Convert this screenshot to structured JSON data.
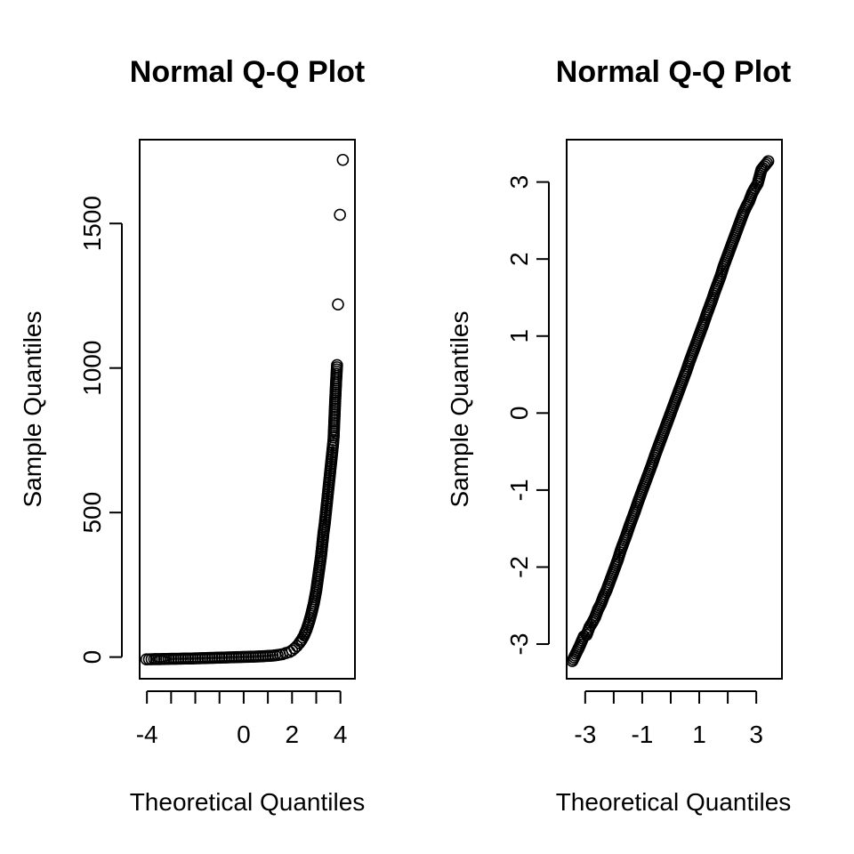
{
  "chart_data": [
    {
      "type": "scatter",
      "title": "Normal Q-Q Plot",
      "xlabel": "Theoretical Quantiles",
      "ylabel": "Sample Quantiles",
      "xlim": [
        -4.3,
        4.6
      ],
      "ylim": [
        -75,
        1790
      ],
      "xticks": [
        -4,
        -3,
        -2,
        -1,
        0,
        1,
        2,
        3,
        4
      ],
      "xtick_labels": [
        "-4",
        "",
        "",
        "",
        "0",
        "",
        "2",
        "",
        "4"
      ],
      "yticks": [
        0,
        500,
        1000,
        1500
      ],
      "ytick_labels": [
        "0",
        "500",
        "1000",
        "1500"
      ],
      "grid": false,
      "points": [
        [
          -4.02,
          -8
        ],
        [
          -3.7,
          -7
        ],
        [
          -3.45,
          -7
        ],
        [
          -3.2,
          -6.5
        ],
        [
          -3.0,
          -6
        ],
        [
          -2.8,
          -6
        ],
        [
          -2.6,
          -5.5
        ],
        [
          -2.4,
          -5
        ],
        [
          -2.2,
          -5
        ],
        [
          -2.0,
          -4.5
        ],
        [
          -1.8,
          -4
        ],
        [
          -1.6,
          -3.5
        ],
        [
          -1.4,
          -3
        ],
        [
          -1.2,
          -2.5
        ],
        [
          -1.0,
          -2
        ],
        [
          -0.8,
          -1.5
        ],
        [
          -0.6,
          -1
        ],
        [
          -0.4,
          -0.5
        ],
        [
          -0.2,
          0
        ],
        [
          0.0,
          0.5
        ],
        [
          0.2,
          1
        ],
        [
          0.4,
          1.5
        ],
        [
          0.6,
          2
        ],
        [
          0.8,
          3
        ],
        [
          1.0,
          4
        ],
        [
          1.2,
          5
        ],
        [
          1.4,
          7
        ],
        [
          1.6,
          10
        ],
        [
          1.75,
          14
        ],
        [
          1.9,
          18
        ],
        [
          2.0,
          23
        ],
        [
          2.1,
          30
        ],
        [
          2.2,
          38
        ],
        [
          2.3,
          48
        ],
        [
          2.4,
          60
        ],
        [
          2.5,
          75
        ],
        [
          2.6,
          95
        ],
        [
          2.7,
          120
        ],
        [
          2.8,
          150
        ],
        [
          2.9,
          185
        ],
        [
          3.0,
          230
        ],
        [
          3.05,
          260
        ],
        [
          3.1,
          290
        ],
        [
          3.15,
          320
        ],
        [
          3.2,
          350
        ],
        [
          3.25,
          390
        ],
        [
          3.3,
          430
        ],
        [
          3.35,
          460
        ],
        [
          3.4,
          500
        ],
        [
          3.45,
          540
        ],
        [
          3.5,
          580
        ],
        [
          3.55,
          620
        ],
        [
          3.6,
          660
        ],
        [
          3.65,
          700
        ],
        [
          3.7,
          740
        ],
        [
          3.72,
          760
        ],
        [
          3.78,
          880
        ],
        [
          3.82,
          950
        ],
        [
          3.86,
          1010
        ],
        [
          3.9,
          1220
        ],
        [
          3.98,
          1530
        ],
        [
          4.1,
          1720
        ]
      ]
    },
    {
      "type": "scatter",
      "title": "Normal Q-Q Plot",
      "xlabel": "Theoretical Quantiles",
      "ylabel": "Sample Quantiles",
      "xlim": [
        -3.65,
        3.9
      ],
      "ylim": [
        -3.45,
        3.55
      ],
      "xticks": [
        -3,
        -2,
        -1,
        0,
        1,
        2,
        3
      ],
      "xtick_labels": [
        "-3",
        "",
        "-1",
        "",
        "1",
        "",
        "3"
      ],
      "yticks": [
        -3,
        -2,
        -1,
        0,
        1,
        2,
        3
      ],
      "ytick_labels": [
        "-3",
        "-2",
        "-1",
        "0",
        "1",
        "2",
        "3"
      ],
      "grid": false,
      "points": [
        [
          -3.45,
          -3.22
        ],
        [
          -3.2,
          -3.03
        ],
        [
          -3.05,
          -2.9
        ],
        [
          -2.95,
          -2.88
        ],
        [
          -2.85,
          -2.78
        ],
        [
          -2.75,
          -2.72
        ],
        [
          -2.65,
          -2.65
        ],
        [
          -2.55,
          -2.55
        ],
        [
          -2.45,
          -2.48
        ],
        [
          -2.35,
          -2.38
        ],
        [
          -2.25,
          -2.3
        ],
        [
          -2.15,
          -2.2
        ],
        [
          -2.05,
          -2.1
        ],
        [
          -1.95,
          -2.0
        ],
        [
          -1.85,
          -1.9
        ],
        [
          -1.75,
          -1.78
        ],
        [
          -1.65,
          -1.68
        ],
        [
          -1.55,
          -1.58
        ],
        [
          -1.45,
          -1.47
        ],
        [
          -1.35,
          -1.37
        ],
        [
          -1.25,
          -1.27
        ],
        [
          -1.15,
          -1.16
        ],
        [
          -1.05,
          -1.06
        ],
        [
          -0.95,
          -0.96
        ],
        [
          -0.85,
          -0.86
        ],
        [
          -0.75,
          -0.76
        ],
        [
          -0.65,
          -0.66
        ],
        [
          -0.55,
          -0.55
        ],
        [
          -0.45,
          -0.45
        ],
        [
          -0.35,
          -0.35
        ],
        [
          -0.25,
          -0.25
        ],
        [
          -0.15,
          -0.15
        ],
        [
          -0.05,
          -0.05
        ],
        [
          0.05,
          0.05
        ],
        [
          0.15,
          0.15
        ],
        [
          0.25,
          0.25
        ],
        [
          0.35,
          0.35
        ],
        [
          0.45,
          0.45
        ],
        [
          0.55,
          0.55
        ],
        [
          0.65,
          0.66
        ],
        [
          0.75,
          0.76
        ],
        [
          0.85,
          0.86
        ],
        [
          0.95,
          0.96
        ],
        [
          1.05,
          1.06
        ],
        [
          1.15,
          1.16
        ],
        [
          1.25,
          1.27
        ],
        [
          1.35,
          1.37
        ],
        [
          1.45,
          1.47
        ],
        [
          1.55,
          1.58
        ],
        [
          1.65,
          1.68
        ],
        [
          1.75,
          1.78
        ],
        [
          1.85,
          1.9
        ],
        [
          1.95,
          2.0
        ],
        [
          2.05,
          2.1
        ],
        [
          2.15,
          2.2
        ],
        [
          2.25,
          2.3
        ],
        [
          2.35,
          2.4
        ],
        [
          2.45,
          2.5
        ],
        [
          2.55,
          2.6
        ],
        [
          2.65,
          2.68
        ],
        [
          2.75,
          2.75
        ],
        [
          2.85,
          2.85
        ],
        [
          2.95,
          2.92
        ],
        [
          3.05,
          2.98
        ],
        [
          3.18,
          3.16
        ],
        [
          3.42,
          3.27
        ]
      ]
    }
  ]
}
